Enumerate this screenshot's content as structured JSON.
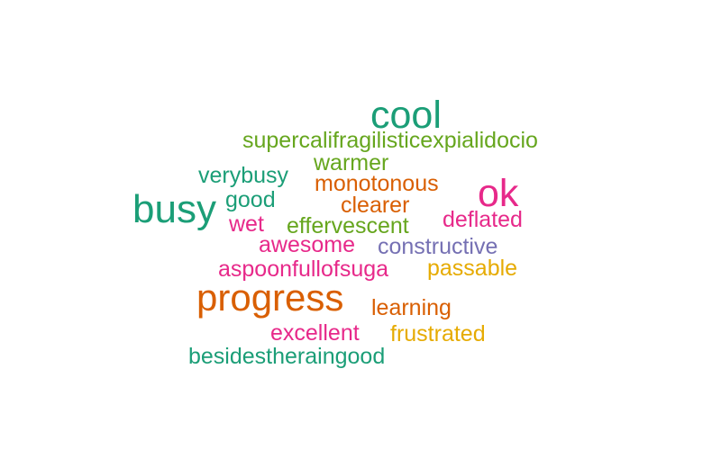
{
  "words": [
    {
      "text": "cool",
      "color": "#1b9e77"
    },
    {
      "text": "supercalifragilisticexpialidocio",
      "color": "#66a61e"
    },
    {
      "text": "warmer",
      "color": "#66a61e"
    },
    {
      "text": "verybusy",
      "color": "#1b9e77"
    },
    {
      "text": "monotonous",
      "color": "#d95f02"
    },
    {
      "text": "ok",
      "color": "#e7298a"
    },
    {
      "text": "busy",
      "color": "#1b9e77"
    },
    {
      "text": "good",
      "color": "#1b9e77"
    },
    {
      "text": "clearer",
      "color": "#d95f02"
    },
    {
      "text": "wet",
      "color": "#e7298a"
    },
    {
      "text": "effervescent",
      "color": "#66a61e"
    },
    {
      "text": "deflated",
      "color": "#e7298a"
    },
    {
      "text": "awesome",
      "color": "#e7298a"
    },
    {
      "text": "constructive",
      "color": "#7570b3"
    },
    {
      "text": "aspoonfullofsuga",
      "color": "#e7298a"
    },
    {
      "text": "passable",
      "color": "#e6ab02"
    },
    {
      "text": "progress",
      "color": "#d95f02"
    },
    {
      "text": "learning",
      "color": "#d95f02"
    },
    {
      "text": "excellent",
      "color": "#e7298a"
    },
    {
      "text": "frustrated",
      "color": "#e6ab02"
    },
    {
      "text": "besidestheraingood",
      "color": "#1b9e77"
    }
  ]
}
